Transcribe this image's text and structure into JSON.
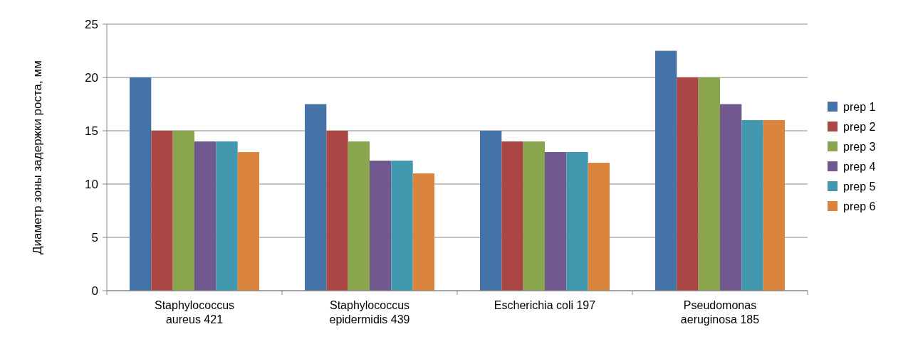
{
  "chart_data": {
    "type": "bar",
    "ylabel": "Диаметр зоны задержки роста, мм",
    "categories": [
      "Staphylococcus\naureus 421",
      "Staphylococcus\nepidermidis 439",
      "Escherichia coli 197",
      "Pseudomonas\naeruginosa 185"
    ],
    "series": [
      {
        "name": "prep 1",
        "color": "#4572a7",
        "values": [
          20,
          17.5,
          15,
          22.5
        ]
      },
      {
        "name": "prep 2",
        "color": "#aa4643",
        "values": [
          15,
          15,
          14,
          20
        ]
      },
      {
        "name": "prep 3",
        "color": "#89a54e",
        "values": [
          15,
          14,
          14,
          20
        ]
      },
      {
        "name": "prep 4",
        "color": "#71588f",
        "values": [
          14,
          12.2,
          13,
          17.5
        ]
      },
      {
        "name": "prep 5",
        "color": "#4198af",
        "values": [
          14,
          12.2,
          13,
          16
        ]
      },
      {
        "name": "prep 6",
        "color": "#db843d",
        "values": [
          13,
          11,
          12,
          16
        ]
      }
    ],
    "ylim": [
      0,
      25
    ],
    "yticks": [
      0,
      5,
      10,
      15,
      20,
      25
    ],
    "grid": "y",
    "legend": "right"
  }
}
